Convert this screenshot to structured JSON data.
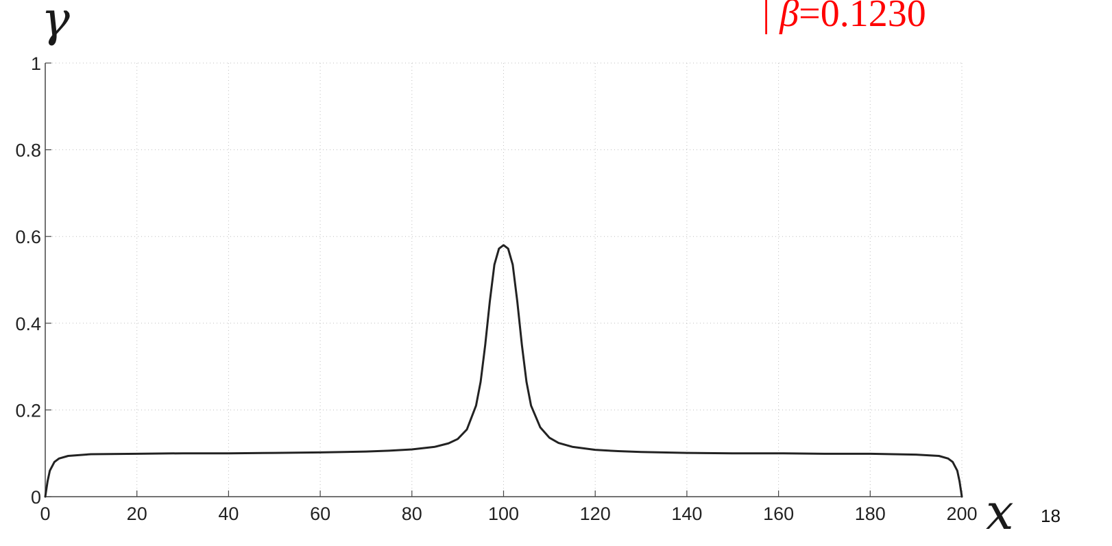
{
  "chart_data": {
    "type": "line",
    "title": "",
    "xlabel": "x",
    "ylabel": "γ",
    "xlim": [
      0,
      200
    ],
    "ylim": [
      0,
      1
    ],
    "x_ticks": [
      0,
      20,
      40,
      60,
      80,
      100,
      120,
      140,
      160,
      180,
      200
    ],
    "x_tick_labels": [
      "0",
      "20",
      "40",
      "60",
      "80",
      "100",
      "120",
      "140",
      "160",
      "180",
      "200"
    ],
    "y_ticks": [
      0,
      0.2,
      0.4,
      0.6,
      0.8,
      1
    ],
    "y_tick_labels": [
      "0",
      "0.2",
      "0.4",
      "0.6",
      "0.8",
      "1"
    ],
    "grid": true,
    "grid_style": "dotted",
    "annotation": {
      "prefix": "| ",
      "symbol": "β",
      "value_text": "=0.1230",
      "color": "#ff0000"
    },
    "series": [
      {
        "color": "#222222",
        "x": [
          0,
          0.5,
          1,
          2,
          3,
          5,
          10,
          20,
          30,
          40,
          50,
          60,
          70,
          75,
          80,
          85,
          88,
          90,
          92,
          94,
          95,
          96,
          97,
          98,
          99,
          100,
          101,
          102,
          103,
          104,
          105,
          106,
          108,
          110,
          112,
          115,
          120,
          125,
          130,
          140,
          150,
          160,
          170,
          180,
          190,
          195,
          197,
          198,
          199,
          199.5,
          200
        ],
        "y": [
          0,
          0.035,
          0.06,
          0.08,
          0.088,
          0.094,
          0.098,
          0.099,
          0.1,
          0.1,
          0.101,
          0.102,
          0.104,
          0.106,
          0.109,
          0.115,
          0.123,
          0.133,
          0.155,
          0.21,
          0.265,
          0.35,
          0.45,
          0.535,
          0.572,
          0.58,
          0.572,
          0.535,
          0.45,
          0.35,
          0.265,
          0.21,
          0.16,
          0.136,
          0.124,
          0.115,
          0.108,
          0.105,
          0.103,
          0.101,
          0.1,
          0.1,
          0.099,
          0.099,
          0.097,
          0.094,
          0.088,
          0.08,
          0.06,
          0.035,
          0
        ]
      }
    ]
  },
  "page": {
    "number": "18"
  }
}
